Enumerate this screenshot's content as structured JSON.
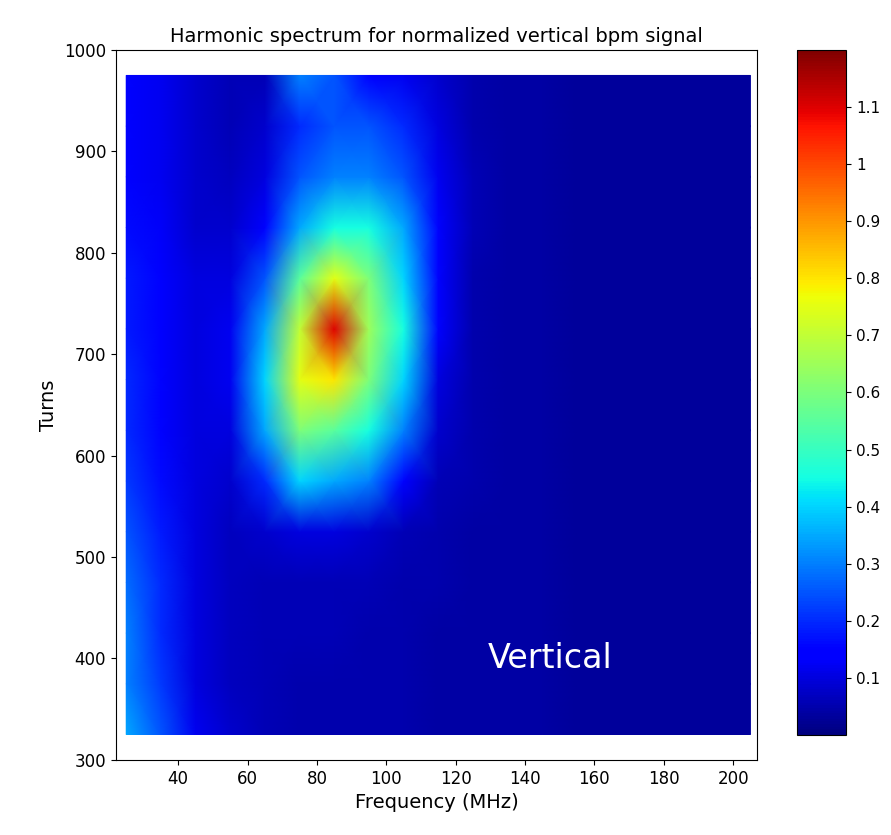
{
  "chart_data": {
    "type": "heatmap",
    "title": "Harmonic spectrum for normalized vertical bpm signal",
    "x_label": "Frequency (MHz)",
    "y_label": "Turns",
    "annotation": "Vertical",
    "x": [
      25,
      35,
      45,
      55,
      65,
      75,
      85,
      95,
      105,
      115,
      125,
      135,
      145,
      155,
      165,
      175,
      185,
      195,
      205
    ],
    "y": [
      325,
      375,
      425,
      475,
      525,
      575,
      625,
      675,
      725,
      775,
      825,
      875,
      925,
      975
    ],
    "cells": [
      [
        0.35,
        0.25,
        0.12,
        0.08,
        0.06,
        0.05,
        0.05,
        0.05,
        0.05,
        0.04,
        0.04,
        0.04,
        0.04,
        0.03,
        0.03,
        0.03,
        0.03,
        0.03,
        0.03
      ],
      [
        0.3,
        0.22,
        0.1,
        0.07,
        0.06,
        0.05,
        0.05,
        0.05,
        0.05,
        0.04,
        0.04,
        0.04,
        0.04,
        0.03,
        0.03,
        0.03,
        0.03,
        0.03,
        0.03
      ],
      [
        0.3,
        0.2,
        0.1,
        0.07,
        0.06,
        0.06,
        0.06,
        0.05,
        0.05,
        0.04,
        0.04,
        0.04,
        0.04,
        0.03,
        0.03,
        0.03,
        0.03,
        0.03,
        0.03
      ],
      [
        0.28,
        0.2,
        0.1,
        0.07,
        0.06,
        0.06,
        0.06,
        0.06,
        0.05,
        0.05,
        0.04,
        0.04,
        0.04,
        0.03,
        0.03,
        0.03,
        0.03,
        0.03,
        0.03
      ],
      [
        0.25,
        0.18,
        0.1,
        0.07,
        0.08,
        0.1,
        0.1,
        0.08,
        0.06,
        0.05,
        0.04,
        0.04,
        0.04,
        0.03,
        0.03,
        0.03,
        0.03,
        0.03,
        0.03
      ],
      [
        0.22,
        0.16,
        0.1,
        0.08,
        0.2,
        0.4,
        0.35,
        0.3,
        0.15,
        0.06,
        0.05,
        0.04,
        0.04,
        0.03,
        0.03,
        0.03,
        0.03,
        0.03,
        0.03
      ],
      [
        0.2,
        0.15,
        0.1,
        0.1,
        0.35,
        0.6,
        0.55,
        0.45,
        0.3,
        0.08,
        0.05,
        0.04,
        0.04,
        0.03,
        0.03,
        0.03,
        0.03,
        0.03,
        0.03
      ],
      [
        0.2,
        0.15,
        0.1,
        0.12,
        0.4,
        0.75,
        0.8,
        0.6,
        0.4,
        0.1,
        0.05,
        0.04,
        0.04,
        0.03,
        0.03,
        0.03,
        0.03,
        0.03,
        0.03
      ],
      [
        0.18,
        0.14,
        0.1,
        0.12,
        0.35,
        0.7,
        1.1,
        0.65,
        0.45,
        0.15,
        0.05,
        0.04,
        0.04,
        0.03,
        0.03,
        0.03,
        0.03,
        0.03,
        0.03
      ],
      [
        0.18,
        0.14,
        0.1,
        0.1,
        0.25,
        0.55,
        0.75,
        0.6,
        0.4,
        0.15,
        0.05,
        0.04,
        0.04,
        0.03,
        0.03,
        0.03,
        0.03,
        0.03,
        0.03
      ],
      [
        0.16,
        0.13,
        0.08,
        0.08,
        0.15,
        0.35,
        0.45,
        0.45,
        0.35,
        0.15,
        0.06,
        0.04,
        0.04,
        0.03,
        0.03,
        0.03,
        0.03,
        0.03,
        0.03
      ],
      [
        0.15,
        0.12,
        0.08,
        0.07,
        0.1,
        0.25,
        0.3,
        0.3,
        0.25,
        0.12,
        0.06,
        0.04,
        0.04,
        0.03,
        0.03,
        0.03,
        0.03,
        0.03,
        0.03
      ],
      [
        0.15,
        0.12,
        0.08,
        0.06,
        0.08,
        0.2,
        0.25,
        0.25,
        0.2,
        0.1,
        0.05,
        0.04,
        0.04,
        0.03,
        0.03,
        0.03,
        0.03,
        0.03,
        0.03
      ],
      [
        0.15,
        0.12,
        0.08,
        0.06,
        0.06,
        0.3,
        0.25,
        0.15,
        0.12,
        0.08,
        0.05,
        0.04,
        0.04,
        0.03,
        0.03,
        0.03,
        0.03,
        0.03,
        0.03
      ]
    ],
    "xlim": [
      22,
      207
    ],
    "xticks": [
      40,
      60,
      80,
      100,
      120,
      140,
      160,
      180,
      200
    ],
    "ylim": [
      300,
      1000
    ],
    "yticks": [
      300,
      400,
      500,
      600,
      700,
      800,
      900,
      1000
    ],
    "colorbar_range": [
      0,
      1.2
    ],
    "colorbar_ticks": [
      0.1,
      0.2,
      0.3,
      0.4,
      0.5,
      0.6,
      0.7,
      0.8,
      0.9,
      1,
      1.1
    ]
  }
}
